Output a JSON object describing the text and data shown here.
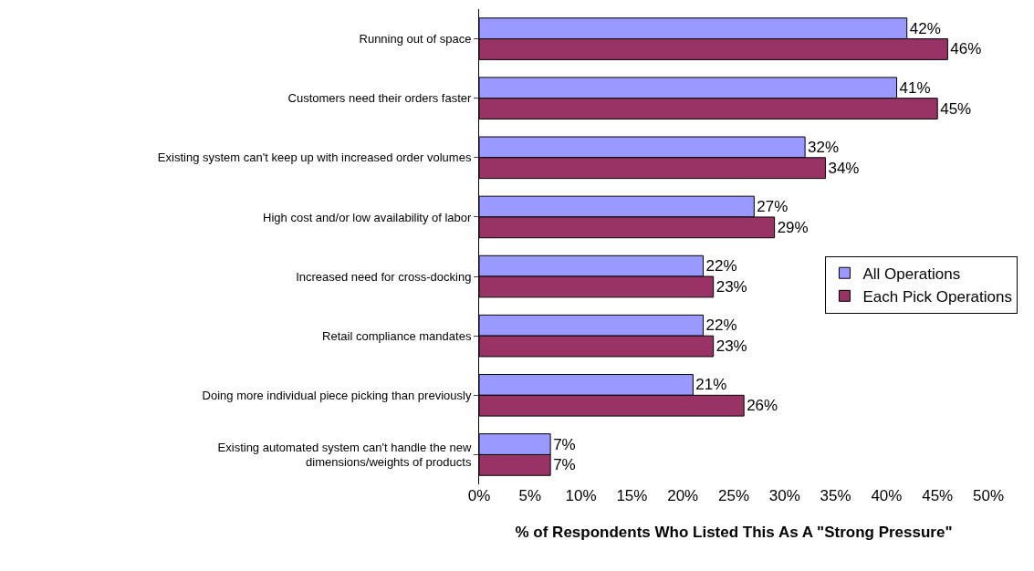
{
  "chart_data": {
    "type": "bar",
    "orientation": "horizontal",
    "xlabel": "% of Respondents Who Listed This As A \"Strong Pressure\"",
    "categories": [
      "Running out of space",
      "Customers need their orders faster",
      "Existing system can't keep up with increased order volumes",
      "High cost and/or low availability of labor",
      "Increased need for cross-docking",
      "Retail compliance mandates",
      "Doing more individual piece picking than previously",
      "Existing automated system can't handle the new\ndimensions/weights of products"
    ],
    "series": [
      {
        "name": "All Operations",
        "color": "#9999ff",
        "values": [
          42,
          41,
          32,
          27,
          22,
          22,
          21,
          7
        ],
        "value_labels": [
          "42%",
          "41%",
          "32%",
          "27%",
          "22%",
          "22%",
          "21%",
          "7%"
        ]
      },
      {
        "name": "Each Pick Operations",
        "color": "#993366",
        "values": [
          46,
          45,
          34,
          29,
          23,
          23,
          26,
          7
        ],
        "value_labels": [
          "46%",
          "45%",
          "34%",
          "29%",
          "23%",
          "23%",
          "26%",
          "7%"
        ]
      }
    ],
    "xlim": [
      0,
      50
    ],
    "xticks": [
      {
        "value": 0,
        "label": "0%"
      },
      {
        "value": 5,
        "label": "5%"
      },
      {
        "value": 10,
        "label": "10%"
      },
      {
        "value": 15,
        "label": "15%"
      },
      {
        "value": 20,
        "label": "20%"
      },
      {
        "value": 25,
        "label": "25%"
      },
      {
        "value": 30,
        "label": "30%"
      },
      {
        "value": 35,
        "label": "35%"
      },
      {
        "value": 40,
        "label": "40%"
      },
      {
        "value": 45,
        "label": "45%"
      },
      {
        "value": 50,
        "label": "50%"
      }
    ],
    "legend": "right"
  }
}
